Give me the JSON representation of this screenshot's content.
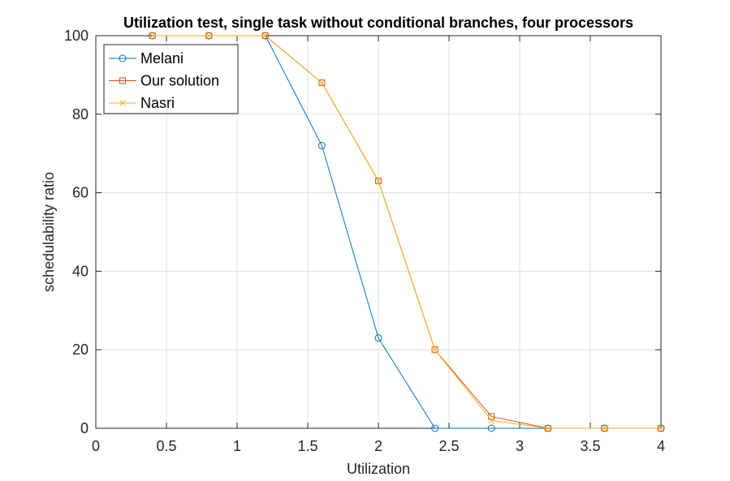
{
  "chart_data": {
    "type": "line",
    "title": "Utilization test, single task without conditional branches, four processors",
    "xlabel": "Utilization",
    "ylabel": "schedulability ratio",
    "xlim": [
      0,
      4
    ],
    "ylim": [
      0,
      100
    ],
    "xticks": [
      0,
      0.5,
      1,
      1.5,
      2,
      2.5,
      3,
      3.5,
      4
    ],
    "xtick_labels": [
      "0",
      "0.5",
      "1",
      "1.5",
      "2",
      "2.5",
      "3",
      "3.5",
      "4"
    ],
    "yticks": [
      0,
      20,
      40,
      60,
      80,
      100
    ],
    "ytick_labels": [
      "0",
      "20",
      "40",
      "60",
      "80",
      "100"
    ],
    "grid": true,
    "legend_position": "top-left",
    "x": [
      0.4,
      0.8,
      1.2,
      1.6,
      2.0,
      2.4,
      2.8,
      3.2,
      3.6,
      4.0
    ],
    "series": [
      {
        "name": "Melani",
        "marker": "circle",
        "color": "#0072BD",
        "values": [
          100,
          100,
          100,
          72,
          23,
          0,
          0,
          0,
          0,
          0
        ]
      },
      {
        "name": "Our solution",
        "marker": "square",
        "color": "#D95319",
        "values": [
          100,
          100,
          100,
          88,
          63,
          20,
          3,
          0,
          0,
          0
        ]
      },
      {
        "name": "Nasri",
        "marker": "x",
        "color": "#EDB120",
        "values": [
          100,
          100,
          100,
          88,
          63,
          20,
          2,
          0,
          0,
          0
        ]
      }
    ]
  }
}
